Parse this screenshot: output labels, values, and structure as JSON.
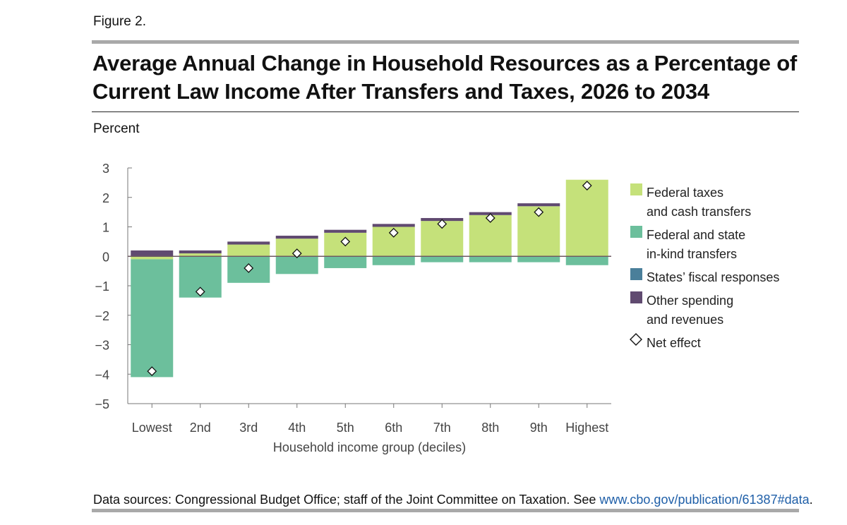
{
  "figure_label": "Figure 2.",
  "title_line1": "Average Annual Change in Household Resources as a Percentage of",
  "title_line2": "Current Law Income After Transfers and Taxes, 2026 to 2034",
  "unit_label": "Percent",
  "source_text": "Data sources: Congressional Budget Office; staff of the Joint Committee on Taxation. See ",
  "source_link": "www.cbo.gov/publication/61387#data",
  "source_end": ".",
  "chart_data": {
    "type": "bar",
    "stacked": true,
    "xlabel": "Household income group (deciles)",
    "ylabel": "Percent",
    "ylim": [
      -5,
      3
    ],
    "yticks": [
      3,
      2,
      1,
      0,
      -1,
      -2,
      -3,
      -4,
      -5
    ],
    "ytick_labels": [
      "3",
      "2",
      "1",
      "0",
      "−1",
      "−2",
      "−3",
      "−4",
      "−5"
    ],
    "categories": [
      "Lowest",
      "2nd",
      "3rd",
      "4th",
      "5th",
      "6th",
      "7th",
      "8th",
      "9th",
      "Highest"
    ],
    "grid": false,
    "legend_position": "right",
    "series": [
      {
        "name": "Federal taxes and cash transfers",
        "color": "#c5e17a",
        "values": [
          -0.1,
          0.1,
          0.4,
          0.6,
          0.8,
          1.0,
          1.2,
          1.4,
          1.7,
          2.6
        ]
      },
      {
        "name": "Federal and state in-kind transfers",
        "color": "#6cbf9c",
        "values": [
          -4.0,
          -1.4,
          -0.9,
          -0.6,
          -0.4,
          -0.3,
          -0.2,
          -0.2,
          -0.2,
          -0.3
        ]
      },
      {
        "name": "States’ fiscal responses",
        "color": "#4a7f9a",
        "values": [
          0,
          0,
          0,
          0,
          0,
          0,
          0,
          0,
          0,
          0
        ]
      },
      {
        "name": "Other spending and revenues",
        "color": "#604a70",
        "values": [
          0.2,
          0.1,
          0.1,
          0.1,
          0.1,
          0.1,
          0.1,
          0.1,
          0.1,
          0.0
        ]
      }
    ],
    "net_effect": {
      "name": "Net effect",
      "values": [
        -3.9,
        -1.2,
        -0.4,
        0.1,
        0.5,
        0.8,
        1.1,
        1.3,
        1.5,
        2.4
      ]
    },
    "legend": [
      {
        "lines": [
          "Federal taxes",
          "and cash transfers"
        ],
        "color": "#c5e17a",
        "marker": "square"
      },
      {
        "lines": [
          "Federal and state",
          "in-kind transfers"
        ],
        "color": "#6cbf9c",
        "marker": "square"
      },
      {
        "lines": [
          "States’ fiscal responses"
        ],
        "color": "#4a7f9a",
        "marker": "square"
      },
      {
        "lines": [
          "Other spending",
          "and revenues"
        ],
        "color": "#604a70",
        "marker": "square"
      },
      {
        "lines": [
          "Net effect"
        ],
        "color": "#ffffff",
        "marker": "diamond"
      }
    ]
  }
}
